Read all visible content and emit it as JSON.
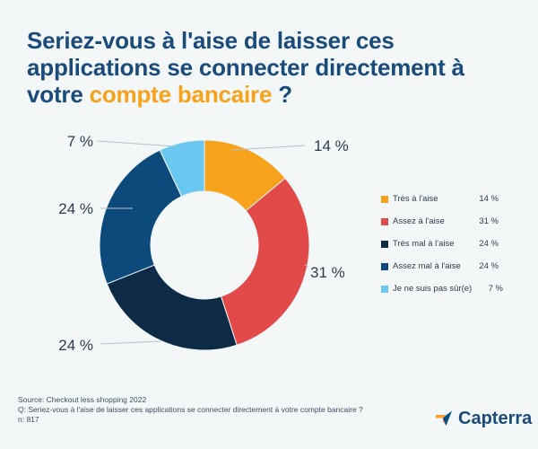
{
  "title": {
    "part1": "Seriez-vous à l'aise de laisser ces applications se connecter directement à votre ",
    "highlight": "compte bancaire",
    "part2": " ?"
  },
  "chart_data": {
    "type": "pie",
    "title": "Seriez-vous à l'aise de laisser ces applications se connecter directement à votre compte bancaire ?",
    "series": [
      {
        "name": "Très à l'aise",
        "value": 14,
        "label": "14 %",
        "color": "#f7a21b"
      },
      {
        "name": "Assez à l'aise",
        "value": 31,
        "label": "31 %",
        "color": "#e24a49"
      },
      {
        "name": "Très mal à l'aise",
        "value": 24,
        "label": "24 %",
        "color": "#0d2b46"
      },
      {
        "name": "Assez mal à l'aise",
        "value": 24,
        "label": "24 %",
        "color": "#0c4a7c"
      },
      {
        "name": "Je ne suis pas sûr(e)",
        "value": 7,
        "label": "7 %",
        "color": "#6ac7ef"
      }
    ]
  },
  "footer": {
    "source": "Source: Checkout less shopping 2022",
    "question": "Q: Seriez-vous à l'aise de laisser ces applications se connecter directement à votre compte bancaire ?",
    "sample": "n: 817"
  },
  "brand": {
    "name": "Capterra"
  },
  "colors": {
    "background": "#f3f7f8",
    "title": "#1b4b7a",
    "accent": "#f7a21b"
  }
}
